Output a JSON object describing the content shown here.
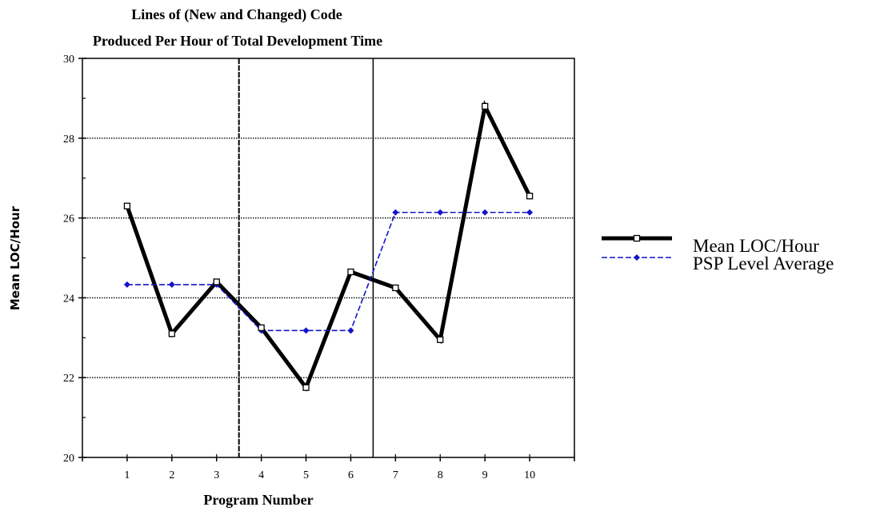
{
  "chart_data": {
    "type": "line",
    "title_line1": "Lines of (New and Changed) Code",
    "title_line2": "Produced Per Hour of Total Development Time",
    "xlabel": "Program Number",
    "ylabel": "Mean LOC/Hour",
    "x": [
      1,
      2,
      3,
      4,
      5,
      6,
      7,
      8,
      9,
      10
    ],
    "x_tick_labels": [
      "1",
      "2",
      "3",
      "4",
      "5",
      "6",
      "7",
      "8",
      "9",
      "10"
    ],
    "xlim": [
      0,
      11
    ],
    "ylim": [
      20,
      30
    ],
    "y_tick_labels": [
      "20",
      "22",
      "24",
      "26",
      "28",
      "30"
    ],
    "y_major_ticks": [
      20,
      22,
      24,
      26,
      28,
      30
    ],
    "y_minor_ticks": [
      21,
      23,
      25,
      27,
      29
    ],
    "gridlines": [
      22,
      24,
      26,
      28
    ],
    "grid": "horizontal-dotted",
    "level_dividers": [
      3.5,
      6.5
    ],
    "legend_position": "right",
    "series": [
      {
        "name": "Mean LOC/Hour",
        "values": [
          26.3,
          23.1,
          24.4,
          23.25,
          21.75,
          24.65,
          24.25,
          22.95,
          28.8,
          26.55
        ],
        "color": "#000000",
        "marker": "open-square"
      },
      {
        "name": "PSP Level Average",
        "values": [
          24.33,
          24.33,
          24.33,
          23.18,
          23.18,
          23.18,
          26.14,
          26.14,
          26.14,
          26.14
        ],
        "color": "#1414c8",
        "marker": "filled-diamond"
      }
    ]
  }
}
